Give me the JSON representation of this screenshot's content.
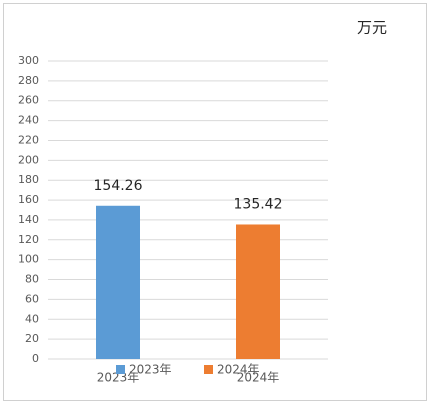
{
  "chart_data": {
    "type": "bar",
    "unit": "万元",
    "categories": [
      "2023年",
      "2024年"
    ],
    "series": [
      {
        "name": "2023年",
        "color": "#5b9bd5",
        "values": [
          154.26,
          null
        ]
      },
      {
        "name": "2024年",
        "color": "#ed7d31",
        "values": [
          null,
          135.42
        ]
      }
    ],
    "ylim": [
      0,
      300
    ],
    "yticks": [
      0,
      20,
      40,
      60,
      80,
      100,
      120,
      140,
      160,
      180,
      200,
      220,
      240,
      260,
      280,
      300
    ],
    "grid": true
  }
}
